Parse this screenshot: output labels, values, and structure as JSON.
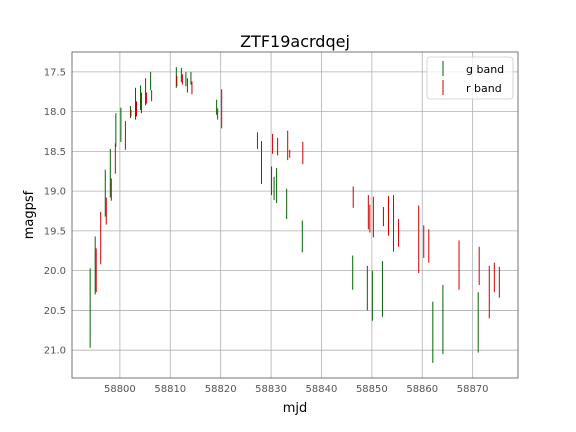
{
  "chart_data": {
    "type": "scatter",
    "title": "ZTF19acrdqej",
    "xlabel": "mjd",
    "ylabel": "magpsf",
    "xlim": [
      58790.5,
      58879
    ],
    "ylim": [
      21.35,
      17.25
    ],
    "y_inverted": true,
    "grid": true,
    "legend_position": "top-right",
    "xticks": [
      58800,
      58810,
      58820,
      58830,
      58840,
      58850,
      58860,
      58870
    ],
    "yticks": [
      17.5,
      18.0,
      18.5,
      19.0,
      19.5,
      20.0,
      20.5,
      21.0
    ],
    "colors": {
      "g band": "#006400",
      "r band": "#cc0000"
    },
    "series": [
      {
        "name": "g band",
        "color": "#006400",
        "points": [
          {
            "x": 58794.1,
            "low": 19.97,
            "high": 20.97
          },
          {
            "x": 58795.1,
            "low": 19.57,
            "high": 20.3
          },
          {
            "x": 58797.1,
            "low": 18.73,
            "high": 19.32
          },
          {
            "x": 58798.1,
            "low": 18.47,
            "high": 19.08
          },
          {
            "x": 58799.2,
            "low": 18.02,
            "high": 18.44
          },
          {
            "x": 58800.2,
            "low": 17.95,
            "high": 18.38
          },
          {
            "x": 58802.1,
            "low": 17.93,
            "high": 18.08
          },
          {
            "x": 58803.1,
            "low": 17.7,
            "high": 18.1
          },
          {
            "x": 58804.1,
            "low": 17.67,
            "high": 17.98
          },
          {
            "x": 58805.1,
            "low": 17.58,
            "high": 17.92
          },
          {
            "x": 58806.1,
            "low": 17.5,
            "high": 17.73
          },
          {
            "x": 58811.2,
            "low": 17.44,
            "high": 17.7
          },
          {
            "x": 58812.2,
            "low": 17.45,
            "high": 17.63
          },
          {
            "x": 58813.1,
            "low": 17.5,
            "high": 17.68
          },
          {
            "x": 58814.1,
            "low": 17.5,
            "high": 17.66
          },
          {
            "x": 58819.2,
            "low": 17.85,
            "high": 18.04
          },
          {
            "x": 58828.1,
            "low": 18.37,
            "high": 18.91
          },
          {
            "x": 58830.1,
            "low": 18.69,
            "high": 19.05
          },
          {
            "x": 58830.6,
            "low": 18.82,
            "high": 19.11
          },
          {
            "x": 58831.1,
            "low": 18.71,
            "high": 19.15
          },
          {
            "x": 58833.1,
            "low": 18.97,
            "high": 19.35
          },
          {
            "x": 58836.2,
            "low": 19.37,
            "high": 19.77
          },
          {
            "x": 58846.2,
            "low": 19.81,
            "high": 20.24
          },
          {
            "x": 58849.1,
            "low": 19.94,
            "high": 20.5
          },
          {
            "x": 58850.1,
            "low": 20.0,
            "high": 20.63
          },
          {
            "x": 58852.1,
            "low": 19.88,
            "high": 20.58
          },
          {
            "x": 58862.1,
            "low": 20.39,
            "high": 21.16
          },
          {
            "x": 58864.1,
            "low": 20.18,
            "high": 21.05
          },
          {
            "x": 58871.1,
            "low": 20.27,
            "high": 21.03
          }
        ]
      },
      {
        "name": "r band",
        "color": "#cc0000",
        "points": [
          {
            "x": 58795.3,
            "low": 19.72,
            "high": 20.27
          },
          {
            "x": 58796.2,
            "low": 19.26,
            "high": 19.92
          },
          {
            "x": 58797.3,
            "low": 19.08,
            "high": 19.42
          },
          {
            "x": 58798.3,
            "low": 18.84,
            "high": 19.12
          },
          {
            "x": 58799.1,
            "low": 18.4,
            "high": 18.78
          },
          {
            "x": 58801.1,
            "low": 18.12,
            "high": 18.48
          },
          {
            "x": 58802.2,
            "low": 17.98,
            "high": 18.06
          },
          {
            "x": 58803.3,
            "low": 17.87,
            "high": 18.06
          },
          {
            "x": 58804.3,
            "low": 17.76,
            "high": 18.02
          },
          {
            "x": 58805.3,
            "low": 17.76,
            "high": 17.9
          },
          {
            "x": 58806.3,
            "low": 17.73,
            "high": 17.87
          },
          {
            "x": 58811.3,
            "low": 17.55,
            "high": 17.68
          },
          {
            "x": 58812.4,
            "low": 17.53,
            "high": 17.66
          },
          {
            "x": 58813.4,
            "low": 17.58,
            "high": 17.76
          },
          {
            "x": 58814.3,
            "low": 17.62,
            "high": 17.78
          },
          {
            "x": 58819.4,
            "low": 17.96,
            "high": 18.1
          },
          {
            "x": 58820.2,
            "low": 17.72,
            "high": 18.21
          },
          {
            "x": 58827.3,
            "low": 18.26,
            "high": 18.47
          },
          {
            "x": 58830.3,
            "low": 18.28,
            "high": 18.53
          },
          {
            "x": 58831.3,
            "low": 18.33,
            "high": 18.55
          },
          {
            "x": 58833.3,
            "low": 18.24,
            "high": 18.61
          },
          {
            "x": 58833.7,
            "low": 18.48,
            "high": 18.58
          },
          {
            "x": 58836.3,
            "low": 18.38,
            "high": 18.66
          },
          {
            "x": 58846.3,
            "low": 18.94,
            "high": 19.21
          },
          {
            "x": 58849.3,
            "low": 19.05,
            "high": 19.48
          },
          {
            "x": 58849.6,
            "low": 19.17,
            "high": 19.52
          },
          {
            "x": 58850.3,
            "low": 19.07,
            "high": 19.58
          },
          {
            "x": 58852.3,
            "low": 19.2,
            "high": 19.44
          },
          {
            "x": 58853.3,
            "low": 19.06,
            "high": 19.56
          },
          {
            "x": 58854.3,
            "low": 19.05,
            "high": 19.76
          },
          {
            "x": 58855.3,
            "low": 19.35,
            "high": 19.7
          },
          {
            "x": 58859.3,
            "low": 19.18,
            "high": 20.03
          },
          {
            "x": 58860.3,
            "low": 19.43,
            "high": 19.84
          },
          {
            "x": 58861.3,
            "low": 19.48,
            "high": 19.9
          },
          {
            "x": 58867.3,
            "low": 19.62,
            "high": 20.24
          },
          {
            "x": 58871.3,
            "low": 19.7,
            "high": 20.18
          },
          {
            "x": 58873.3,
            "low": 19.94,
            "high": 20.6
          },
          {
            "x": 58874.3,
            "low": 19.9,
            "high": 20.27
          },
          {
            "x": 58875.3,
            "low": 19.95,
            "high": 20.34
          }
        ]
      }
    ]
  }
}
